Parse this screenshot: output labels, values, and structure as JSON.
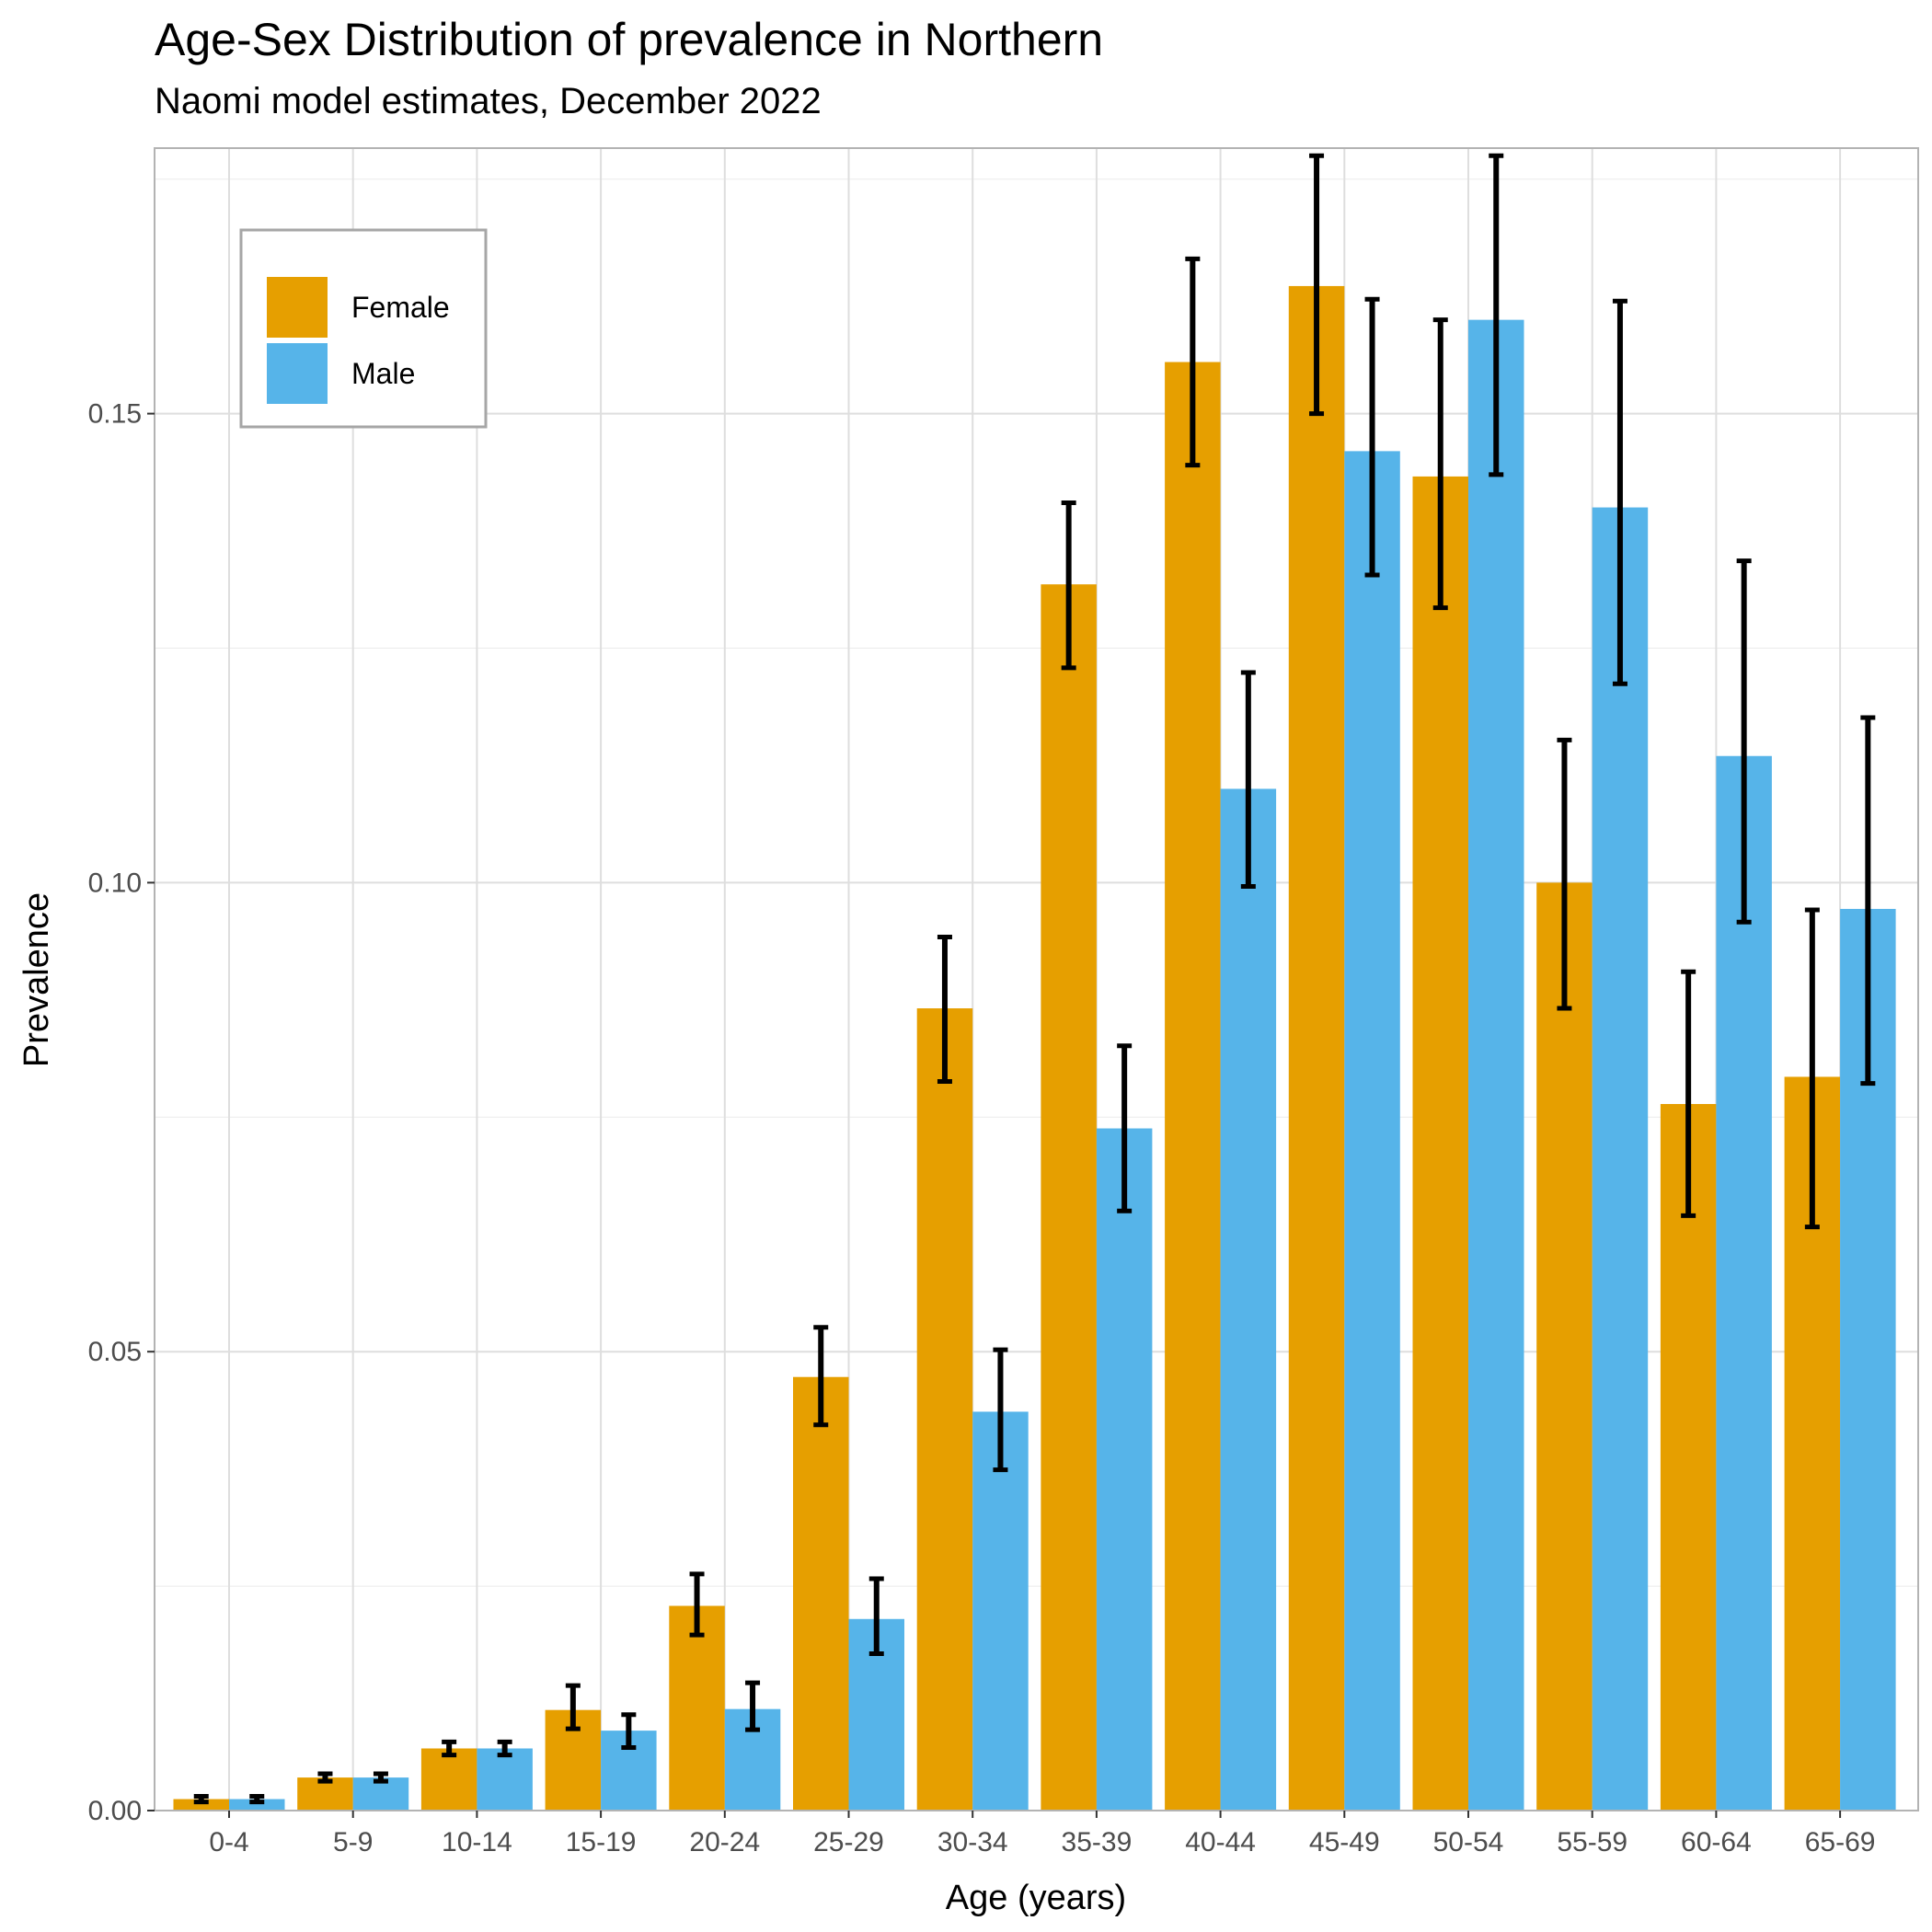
{
  "chart_data": {
    "type": "bar",
    "title": "Age-Sex Distribution of prevalence in Northern",
    "subtitle": "Naomi model estimates, December 2022",
    "xlabel": "Age (years)",
    "ylabel": "Prevalence",
    "ylim": [
      0,
      0.1775
    ],
    "yticks": [
      "0.00",
      "0.05",
      "0.10",
      "0.15"
    ],
    "grid": true,
    "legend_position": "top-left",
    "categories": [
      "0-4",
      "5-9",
      "10-14",
      "15-19",
      "20-24",
      "25-29",
      "30-34",
      "35-39",
      "40-44",
      "45-49",
      "50-54",
      "55-59",
      "60-64",
      "65-69"
    ],
    "series": [
      {
        "name": "Female",
        "color": "#E69F00",
        "values": [
          0.0023,
          0.0046,
          0.0077,
          0.0118,
          0.0229,
          0.0473,
          0.0866,
          0.1318,
          0.1555,
          0.1636,
          0.1433,
          0.1,
          0.0764,
          0.0793
        ],
        "lower": [
          0.002,
          0.0042,
          0.007,
          0.0098,
          0.0198,
          0.0422,
          0.0788,
          0.1229,
          0.1445,
          0.15,
          0.1293,
          0.0866,
          0.0645,
          0.0633
        ],
        "upper": [
          0.0026,
          0.005,
          0.0084,
          0.0144,
          0.0263,
          0.0526,
          0.0942,
          0.1405,
          0.1665,
          0.1775,
          0.16,
          0.1152,
          0.0905,
          0.0971
        ]
      },
      {
        "name": "Male",
        "color": "#56B4E9",
        "values": [
          0.0023,
          0.0046,
          0.0077,
          0.0096,
          0.0119,
          0.0215,
          0.0436,
          0.0738,
          0.11,
          0.146,
          0.16,
          0.14,
          0.1135,
          0.0972
        ],
        "lower": [
          0.002,
          0.0042,
          0.007,
          0.0078,
          0.0097,
          0.0178,
          0.0374,
          0.065,
          0.0996,
          0.1328,
          0.1435,
          0.1212,
          0.0958,
          0.0786
        ],
        "upper": [
          0.0026,
          0.005,
          0.0084,
          0.0113,
          0.0147,
          0.0258,
          0.0502,
          0.0826,
          0.1224,
          0.1622,
          0.1775,
          0.162,
          0.1343,
          0.1176
        ]
      }
    ]
  }
}
